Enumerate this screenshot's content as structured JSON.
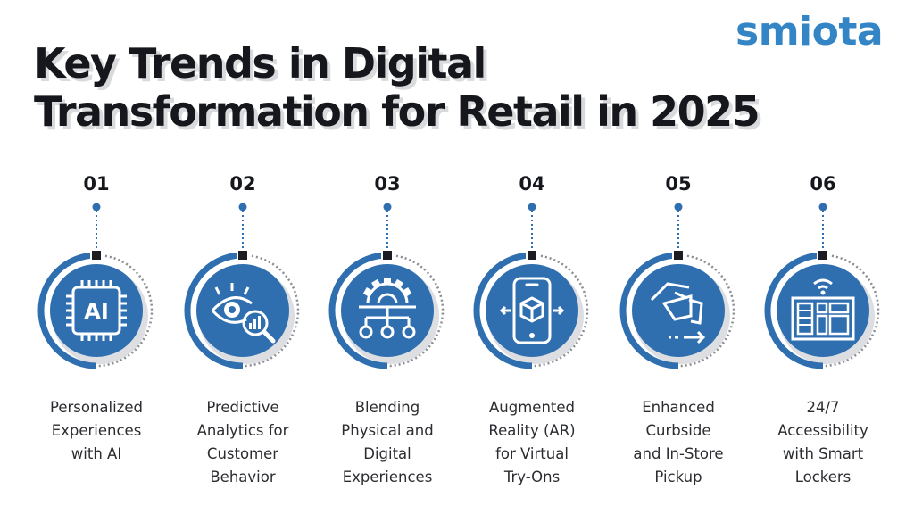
{
  "title": {
    "line1": "Key Trends in Digital",
    "line2": "Transformation for Retail in 2025"
  },
  "logo": {
    "text": "smiota"
  },
  "colors": {
    "primary": "#2f6fb0",
    "accent": "#3385c6",
    "title": "#15171c",
    "shadow": "#d9dadc"
  },
  "steps": [
    {
      "number": "01",
      "icon": "ai-chip-icon",
      "label_lines": [
        "Personalized",
        "Experiences",
        "with AI"
      ]
    },
    {
      "number": "02",
      "icon": "eye-analytics-icon",
      "label_lines": [
        "Predictive",
        "Analytics for",
        "Customer",
        "Behavior"
      ]
    },
    {
      "number": "03",
      "icon": "gear-network-icon",
      "label_lines": [
        "Blending",
        "Physical and",
        "Digital",
        "Experiences"
      ]
    },
    {
      "number": "04",
      "icon": "ar-phone-icon",
      "label_lines": [
        "Augmented",
        "Reality (AR)",
        "for Virtual",
        "Try-Ons"
      ]
    },
    {
      "number": "05",
      "icon": "curbside-pickup-icon",
      "label_lines": [
        "Enhanced",
        "Curbside",
        "and In-Store",
        "Pickup"
      ]
    },
    {
      "number": "06",
      "icon": "smart-locker-icon",
      "label_lines": [
        "24/7",
        "Accessibility",
        "with Smart",
        "Lockers"
      ]
    }
  ]
}
